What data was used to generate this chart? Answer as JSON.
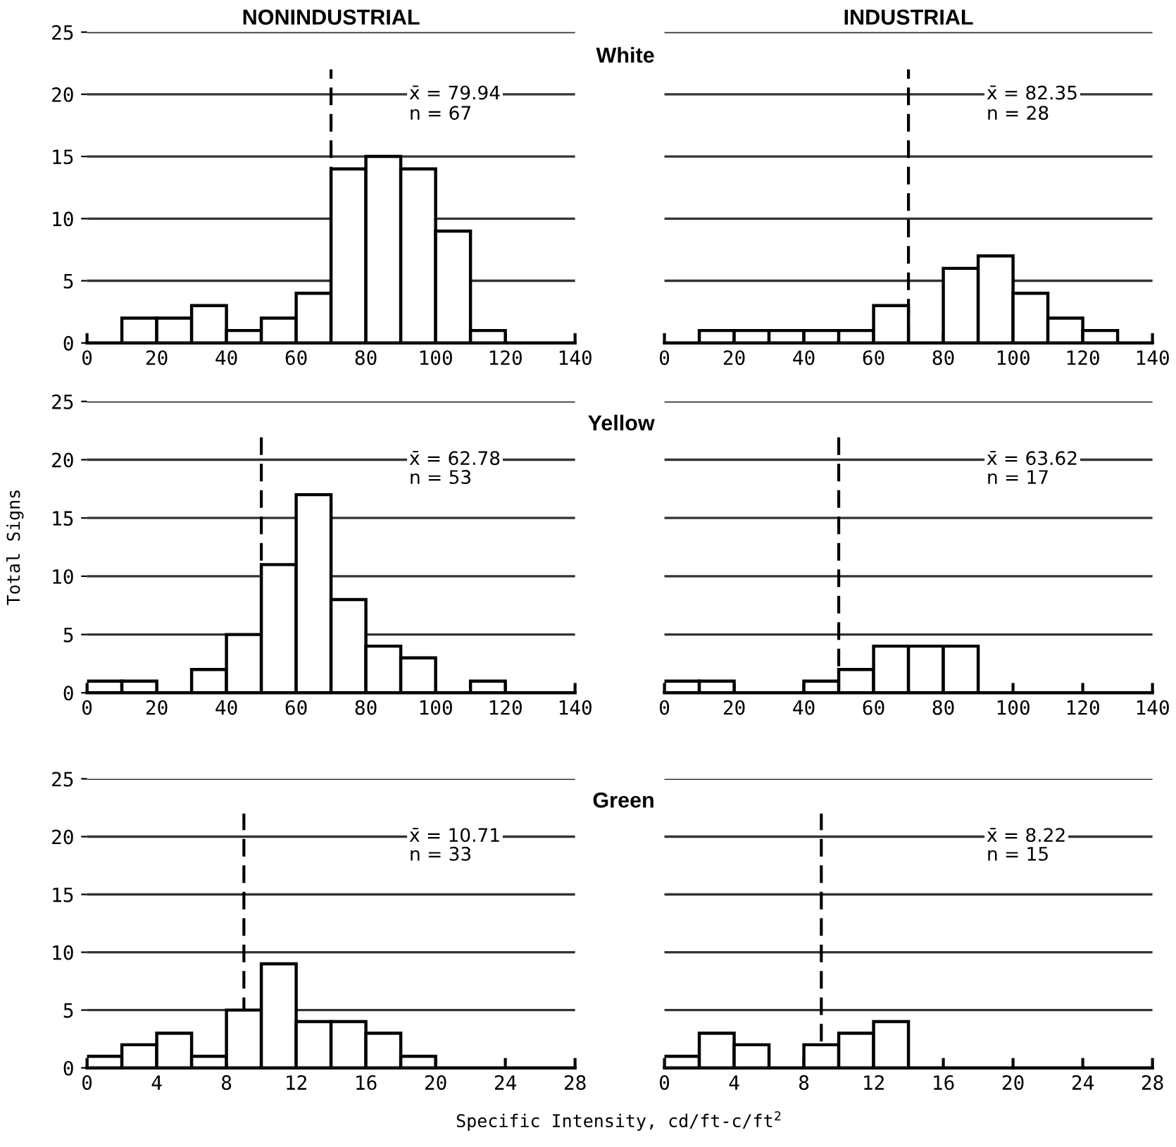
{
  "chart_data": [
    {
      "type": "histogram",
      "title": "NONINDUSTRIAL",
      "bins": [
        10,
        20,
        30,
        40,
        50,
        60,
        70,
        80,
        90,
        100,
        110,
        120
      ],
      "values": [
        2,
        2,
        3,
        1,
        2,
        4,
        14,
        15,
        14,
        9,
        1
      ],
      "color": "#ffffff",
      "xlim": [
        0,
        140
      ],
      "xticks": [
        0,
        20,
        40,
        60,
        80,
        100,
        120,
        140
      ],
      "ylim": [
        0,
        25
      ],
      "yticks": [
        0,
        5,
        10,
        15,
        20,
        25
      ],
      "grid": "y",
      "ref_lines": [
        {
          "axis": "x",
          "value": 70,
          "line_style": "dashed"
        }
      ],
      "annotations": [
        "x̄ = 79.94",
        "n = 67"
      ]
    },
    {
      "type": "histogram",
      "title": "INDUSTRIAL",
      "subtitle": "White",
      "bins": [
        10,
        20,
        30,
        40,
        50,
        60,
        70,
        80,
        90,
        100,
        110,
        120,
        130
      ],
      "values": [
        1,
        1,
        1,
        1,
        1,
        3,
        0,
        6,
        7,
        4,
        2,
        1
      ],
      "color": "#ffffff",
      "xlim": [
        0,
        140
      ],
      "xticks": [
        0,
        20,
        40,
        60,
        80,
        100,
        120,
        140
      ],
      "ylim": [
        0,
        25
      ],
      "yticks": [
        0,
        5,
        10,
        15,
        20,
        25
      ],
      "grid": "y",
      "tick_labels": "x",
      "ref_lines": [
        {
          "axis": "x",
          "value": 70,
          "line_style": "dashed"
        }
      ],
      "annotations": [
        "x̄ = 82.35",
        "n = 28"
      ]
    },
    {
      "type": "histogram",
      "ylabel": "Total Signs",
      "bins": [
        0,
        10,
        20,
        30,
        40,
        50,
        60,
        70,
        80,
        90,
        100,
        110,
        120
      ],
      "values": [
        1,
        1,
        0,
        2,
        5,
        11,
        17,
        8,
        4,
        3,
        0,
        1
      ],
      "color": "#ffffff",
      "xlim": [
        0,
        140
      ],
      "xticks": [
        0,
        20,
        40,
        60,
        80,
        100,
        120,
        140
      ],
      "ylim": [
        0,
        25
      ],
      "yticks": [
        0,
        5,
        10,
        15,
        20,
        25
      ],
      "grid": "y",
      "ref_lines": [
        {
          "axis": "x",
          "value": 50,
          "line_style": "dashed"
        }
      ],
      "annotations": [
        "x̄ = 62.78",
        "n = 53"
      ]
    },
    {
      "type": "histogram",
      "subtitle": "Yellow",
      "bins": [
        0,
        10,
        20,
        30,
        40,
        50,
        60,
        70,
        80,
        90
      ],
      "values": [
        1,
        1,
        0,
        0,
        1,
        2,
        4,
        4,
        4
      ],
      "color": "#ffffff",
      "xlim": [
        0,
        140
      ],
      "xticks": [
        0,
        20,
        40,
        60,
        80,
        100,
        120,
        140
      ],
      "ylim": [
        0,
        25
      ],
      "yticks": [
        0,
        5,
        10,
        15,
        20,
        25
      ],
      "grid": "y",
      "tick_labels": "x",
      "ref_lines": [
        {
          "axis": "x",
          "value": 50,
          "line_style": "dashed"
        }
      ],
      "annotations": [
        "x̄ = 63.62",
        "n = 17"
      ]
    },
    {
      "type": "histogram",
      "xlabel": "Specific Intensity, cd/ft-c/ft$^{2}$",
      "bins": [
        0,
        2,
        4,
        6,
        8,
        10,
        12,
        14,
        16,
        18,
        20
      ],
      "values": [
        1,
        2,
        3,
        1,
        5,
        9,
        4,
        4,
        3,
        1
      ],
      "color": "#ffffff",
      "xlim": [
        0,
        28
      ],
      "xticks": [
        0,
        4,
        8,
        12,
        16,
        20,
        24,
        28
      ],
      "ylim": [
        0,
        25
      ],
      "yticks": [
        0,
        5,
        10,
        15,
        20,
        25
      ],
      "grid": "y",
      "ref_lines": [
        {
          "axis": "x",
          "value": 9,
          "line_style": "dashed"
        }
      ],
      "annotations": [
        "x̄ = 10.71",
        "n = 33"
      ]
    },
    {
      "type": "histogram",
      "subtitle": "Green",
      "bins": [
        0,
        2,
        4,
        6,
        8,
        10,
        12,
        14
      ],
      "values": [
        1,
        3,
        2,
        0,
        2,
        3,
        4
      ],
      "color": "#ffffff",
      "xlim": [
        0,
        28
      ],
      "xticks": [
        0,
        4,
        8,
        12,
        16,
        20,
        24,
        28
      ],
      "ylim": [
        0,
        25
      ],
      "yticks": [
        0,
        5,
        10,
        15,
        20,
        25
      ],
      "grid": "y",
      "tick_labels": "x",
      "ref_lines": [
        {
          "axis": "x",
          "value": 9,
          "line_style": "dashed"
        }
      ],
      "annotations": [
        "x̄ = 8.22",
        "n = 15"
      ]
    }
  ]
}
